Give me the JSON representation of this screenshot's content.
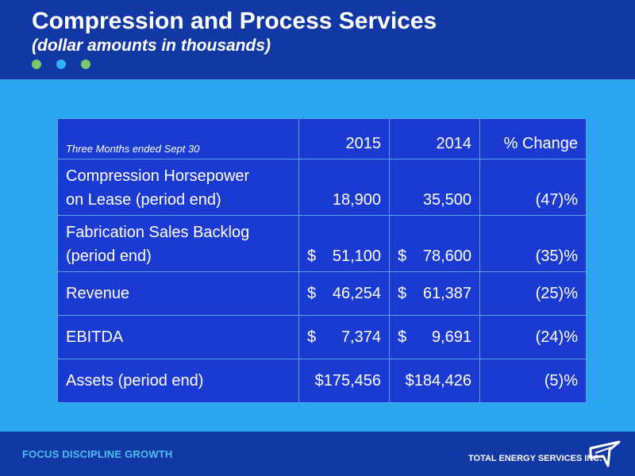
{
  "header": {
    "title": "Compression and Process Services",
    "subtitle": "(dollar amounts in thousands)",
    "dots": [
      "#7ec86a",
      "#2fb3f5",
      "#7ec86a"
    ]
  },
  "table": {
    "period_label": "Three Months ended  Sept 30",
    "col_2015": "2015",
    "col_2014": "2014",
    "col_change": "% Change",
    "rows": [
      {
        "label_1": "Compression Horsepower",
        "label_2": "on Lease (period end)",
        "v2015": "18,900",
        "v2014": "35,500",
        "change": "(47)%"
      },
      {
        "label_1": "Fabrication Sales Backlog",
        "label_2": "(period end)",
        "cur": "$",
        "v2015": "51,100",
        "v2014": "78,600",
        "change": "(35)%"
      },
      {
        "label": "Revenue",
        "cur": "$",
        "v2015": "46,254",
        "v2014": "61,387",
        "change": "(25)%"
      },
      {
        "label": "EBITDA",
        "cur": "$",
        "v2015": "7,374",
        "v2014": "9,691",
        "change": "(24)%"
      },
      {
        "label": "Assets (period end)",
        "v2015": "$175,456",
        "v2014": "$184,426",
        "change": "(5)%"
      }
    ]
  },
  "footer": {
    "tagline": "FOCUS  DISCIPLINE  GROWTH",
    "brand": "TOTAL ENERGY SERVICES INC."
  },
  "colors": {
    "header_bg": "#1238a6",
    "body_bg": "#29a6ee",
    "table_bg": "#1b3ad2"
  }
}
